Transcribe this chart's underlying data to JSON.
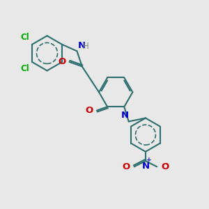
{
  "bg_color": "#e8e8e8",
  "bond_color": "#2d6e6e",
  "atom_colors": {
    "N": "#0000cc",
    "O": "#cc0000",
    "Cl": "#00aa00",
    "H": "#888888",
    "NO2_N": "#0000cc",
    "NO2_O": "#cc0000"
  },
  "line_width": 1.5,
  "font_size": 8.5
}
